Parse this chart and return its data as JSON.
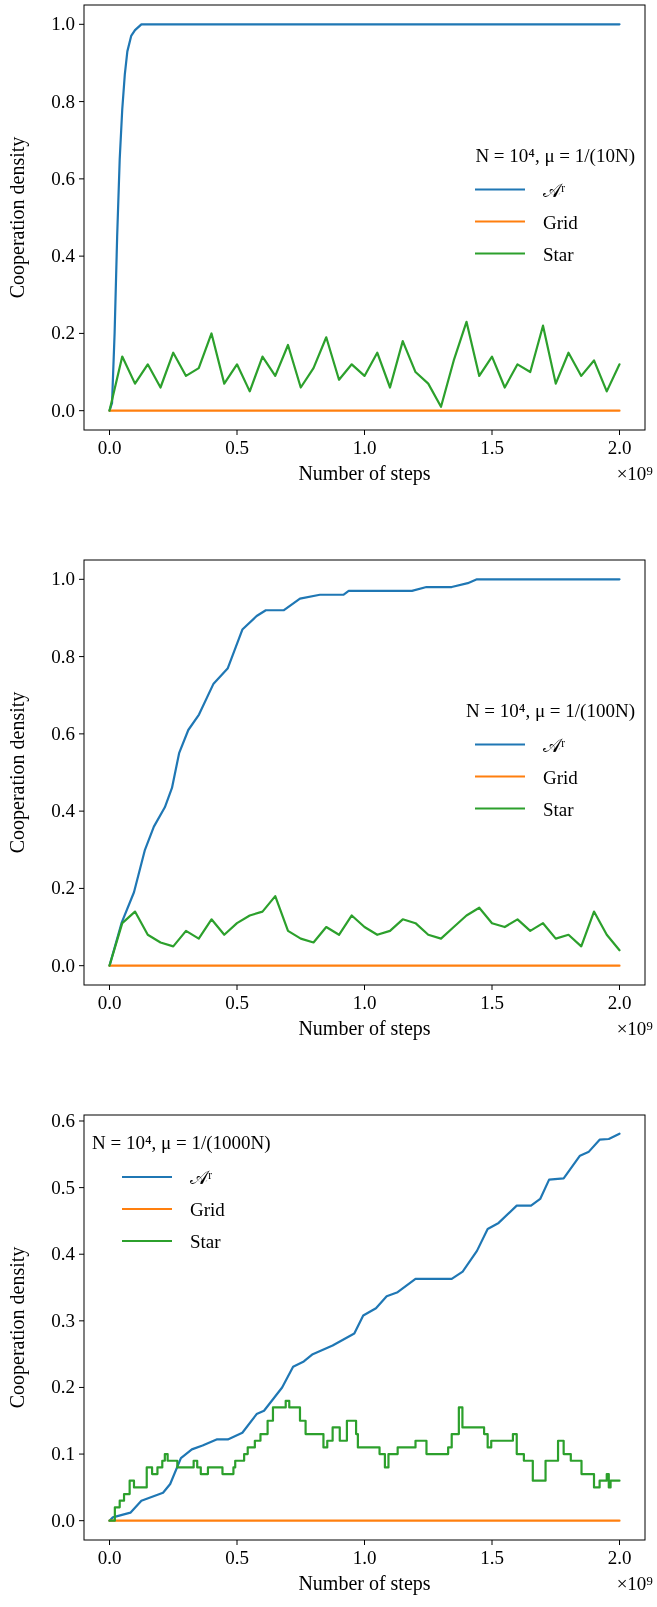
{
  "chart_data": [
    {
      "type": "line",
      "xlabel": "Number of steps",
      "ylabel": "Cooperation density",
      "legend_title": "N = 10⁴, μ = 1/(10N)",
      "legend": "right",
      "annotations": [
        "×10⁹"
      ],
      "xlim": [
        -0.1,
        2.1
      ],
      "ylim": [
        -0.05,
        1.05
      ],
      "xticks": [
        {
          "value": 0,
          "label": "0.0"
        },
        {
          "value": 0.5,
          "label": "0.5"
        },
        {
          "value": 1,
          "label": "1.0"
        },
        {
          "value": 1.5,
          "label": "1.5"
        },
        {
          "value": 2,
          "label": "2.0"
        }
      ],
      "yticks": [
        {
          "value": 0,
          "label": "0.0"
        },
        {
          "value": 0.2,
          "label": "0.2"
        },
        {
          "value": 0.4,
          "label": "0.4"
        },
        {
          "value": 0.6,
          "label": "0.6"
        },
        {
          "value": 0.8,
          "label": "0.8"
        },
        {
          "value": 1,
          "label": "1.0"
        }
      ],
      "series": [
        {
          "name": "𝒜ʳ",
          "color": "#1f77b4",
          "x": [
            0,
            0.01,
            0.02,
            0.03,
            0.04,
            0.05,
            0.06,
            0.07,
            0.085,
            0.1,
            0.125,
            2.0
          ],
          "values": [
            0,
            0.02,
            0.2,
            0.45,
            0.65,
            0.78,
            0.87,
            0.93,
            0.97,
            0.985,
            1.0,
            1.0
          ]
        },
        {
          "name": "Grid",
          "color": "#ff7f0e",
          "x": [
            0,
            2.0
          ],
          "values": [
            0,
            0
          ]
        },
        {
          "name": "Star",
          "color": "#2ca02c",
          "x": [
            0,
            0.05,
            0.1,
            0.15,
            0.2,
            0.25,
            0.3,
            0.35,
            0.4,
            0.45,
            0.5,
            0.55,
            0.6,
            0.65,
            0.7,
            0.75,
            0.8,
            0.85,
            0.9,
            0.95,
            1.0,
            1.05,
            1.1,
            1.15,
            1.2,
            1.25,
            1.3,
            1.35,
            1.4,
            1.45,
            1.5,
            1.55,
            1.6,
            1.65,
            1.7,
            1.75,
            1.8,
            1.85,
            1.9,
            1.95,
            2.0
          ],
          "values": [
            0,
            0.14,
            0.07,
            0.12,
            0.06,
            0.15,
            0.09,
            0.11,
            0.2,
            0.07,
            0.12,
            0.05,
            0.14,
            0.09,
            0.17,
            0.06,
            0.11,
            0.19,
            0.08,
            0.12,
            0.09,
            0.15,
            0.06,
            0.18,
            0.1,
            0.07,
            0.01,
            0.13,
            0.23,
            0.09,
            0.14,
            0.06,
            0.12,
            0.1,
            0.22,
            0.07,
            0.15,
            0.09,
            0.13,
            0.05,
            0.12
          ]
        }
      ]
    },
    {
      "type": "line",
      "xlabel": "Number of steps",
      "ylabel": "Cooperation density",
      "legend_title": "N = 10⁴, μ = 1/(100N)",
      "legend": "right",
      "annotations": [
        "×10⁹"
      ],
      "xlim": [
        -0.1,
        2.1
      ],
      "ylim": [
        -0.05,
        1.05
      ],
      "xticks": [
        {
          "value": 0,
          "label": "0.0"
        },
        {
          "value": 0.5,
          "label": "0.5"
        },
        {
          "value": 1,
          "label": "1.0"
        },
        {
          "value": 1.5,
          "label": "1.5"
        },
        {
          "value": 2,
          "label": "2.0"
        }
      ],
      "yticks": [
        {
          "value": 0,
          "label": "0.0"
        },
        {
          "value": 0.2,
          "label": "0.2"
        },
        {
          "value": 0.4,
          "label": "0.4"
        },
        {
          "value": 0.6,
          "label": "0.6"
        },
        {
          "value": 0.8,
          "label": "0.8"
        },
        {
          "value": 1,
          "label": "1.0"
        }
      ],
      "series": [
        {
          "name": "𝒜ʳ",
          "color": "#1f77b4",
          "x": [
            0,
            0.047,
            0.096,
            0.139,
            0.174,
            0.217,
            0.245,
            0.273,
            0.309,
            0.351,
            0.408,
            0.464,
            0.521,
            0.577,
            0.613,
            0.684,
            0.747,
            0.825,
            0.917,
            0.938,
            1.186,
            1.243,
            1.342,
            1.405,
            1.441,
            2.0
          ],
          "values": [
            0,
            0.11,
            0.19,
            0.3,
            0.36,
            0.41,
            0.46,
            0.55,
            0.61,
            0.65,
            0.73,
            0.77,
            0.87,
            0.905,
            0.92,
            0.92,
            0.95,
            0.96,
            0.96,
            0.97,
            0.97,
            0.98,
            0.98,
            0.99,
            1.0,
            1.0
          ]
        },
        {
          "name": "Grid",
          "color": "#ff7f0e",
          "x": [
            0,
            2.0
          ],
          "values": [
            0,
            0
          ]
        },
        {
          "name": "Star",
          "color": "#2ca02c",
          "x": [
            0,
            0.05,
            0.1,
            0.15,
            0.2,
            0.25,
            0.3,
            0.35,
            0.4,
            0.45,
            0.5,
            0.55,
            0.6,
            0.65,
            0.7,
            0.75,
            0.8,
            0.85,
            0.9,
            0.95,
            1.0,
            1.05,
            1.1,
            1.15,
            1.2,
            1.25,
            1.3,
            1.35,
            1.4,
            1.45,
            1.5,
            1.55,
            1.6,
            1.65,
            1.7,
            1.75,
            1.8,
            1.85,
            1.9,
            1.95,
            2.0
          ],
          "values": [
            0,
            0.11,
            0.14,
            0.08,
            0.06,
            0.05,
            0.09,
            0.07,
            0.12,
            0.08,
            0.11,
            0.13,
            0.14,
            0.18,
            0.09,
            0.07,
            0.06,
            0.1,
            0.08,
            0.13,
            0.1,
            0.08,
            0.09,
            0.12,
            0.11,
            0.08,
            0.07,
            0.1,
            0.13,
            0.15,
            0.11,
            0.1,
            0.12,
            0.09,
            0.11,
            0.07,
            0.08,
            0.05,
            0.14,
            0.08,
            0.04
          ]
        }
      ]
    },
    {
      "type": "line",
      "xlabel": "Number of steps",
      "ylabel": "Cooperation density",
      "legend_title": "N = 10⁴, μ = 1/(1000N)",
      "legend": "top left",
      "annotations": [
        "×10⁹"
      ],
      "xlim": [
        -0.1,
        2.1
      ],
      "ylim": [
        -0.029,
        0.609
      ],
      "xticks": [
        {
          "value": 0,
          "label": "0.0"
        },
        {
          "value": 0.5,
          "label": "0.5"
        },
        {
          "value": 1,
          "label": "1.0"
        },
        {
          "value": 1.5,
          "label": "1.5"
        },
        {
          "value": 2,
          "label": "2.0"
        }
      ],
      "yticks": [
        {
          "value": 0,
          "label": "0.0"
        },
        {
          "value": 0.1,
          "label": "0.1"
        },
        {
          "value": 0.2,
          "label": "0.2"
        },
        {
          "value": 0.3,
          "label": "0.3"
        },
        {
          "value": 0.4,
          "label": "0.4"
        },
        {
          "value": 0.5,
          "label": "0.5"
        },
        {
          "value": 0.6,
          "label": "0.6"
        }
      ],
      "series": [
        {
          "name": "𝒜ʳ",
          "color": "#1f77b4",
          "x": [
            0,
            0.013,
            0.082,
            0.125,
            0.21,
            0.238,
            0.28,
            0.323,
            0.365,
            0.42,
            0.464,
            0.521,
            0.577,
            0.606,
            0.677,
            0.72,
            0.762,
            0.797,
            0.875,
            0.96,
            0.995,
            1.045,
            1.087,
            1.13,
            1.2,
            1.342,
            1.385,
            1.441,
            1.483,
            1.526,
            1.597,
            1.653,
            1.689,
            1.724,
            1.781,
            1.845,
            1.88,
            1.922,
            1.958,
            2.0
          ],
          "values": [
            0,
            0.005,
            0.012,
            0.03,
            0.042,
            0.055,
            0.094,
            0.107,
            0.113,
            0.122,
            0.122,
            0.132,
            0.16,
            0.165,
            0.2,
            0.231,
            0.239,
            0.25,
            0.263,
            0.281,
            0.308,
            0.319,
            0.337,
            0.343,
            0.363,
            0.363,
            0.374,
            0.405,
            0.438,
            0.447,
            0.473,
            0.473,
            0.483,
            0.512,
            0.514,
            0.548,
            0.554,
            0.572,
            0.573,
            0.581
          ]
        },
        {
          "name": "Grid",
          "color": "#ff7f0e",
          "x": [
            0,
            2.0
          ],
          "values": [
            0,
            0
          ]
        },
        {
          "name": "Star",
          "type": "step",
          "color": "#2ca02c",
          "x": [
            0,
            0.021,
            0.04,
            0.057,
            0.079,
            0.096,
            0.139,
            0.146,
            0.167,
            0.188,
            0.207,
            0.217,
            0.228,
            0.266,
            0.323,
            0.33,
            0.344,
            0.358,
            0.386,
            0.443,
            0.486,
            0.493,
            0.528,
            0.542,
            0.57,
            0.592,
            0.62,
            0.641,
            0.691,
            0.705,
            0.747,
            0.769,
            0.825,
            0.839,
            0.854,
            0.875,
            0.903,
            0.931,
            0.967,
            0.974,
            1.059,
            1.08,
            1.094,
            1.13,
            1.2,
            1.243,
            1.328,
            1.342,
            1.37,
            1.384,
            1.469,
            1.483,
            1.497,
            1.582,
            1.597,
            1.625,
            1.66,
            1.71,
            1.759,
            1.781,
            1.809,
            1.851,
            1.9,
            1.922,
            1.95,
            1.958,
            1.965,
            2.0
          ],
          "values": [
            0,
            0.02,
            0.03,
            0.04,
            0.06,
            0.05,
            0.05,
            0.08,
            0.07,
            0.08,
            0.09,
            0.1,
            0.09,
            0.08,
            0.08,
            0.09,
            0.08,
            0.07,
            0.08,
            0.07,
            0.08,
            0.09,
            0.1,
            0.11,
            0.12,
            0.13,
            0.15,
            0.17,
            0.18,
            0.17,
            0.15,
            0.13,
            0.13,
            0.11,
            0.12,
            0.14,
            0.12,
            0.15,
            0.13,
            0.11,
            0.1,
            0.08,
            0.1,
            0.11,
            0.12,
            0.1,
            0.11,
            0.13,
            0.17,
            0.14,
            0.13,
            0.11,
            0.12,
            0.13,
            0.1,
            0.09,
            0.06,
            0.09,
            0.12,
            0.1,
            0.09,
            0.07,
            0.05,
            0.06,
            0.07,
            0.05,
            0.06,
            0.06
          ]
        }
      ]
    }
  ]
}
